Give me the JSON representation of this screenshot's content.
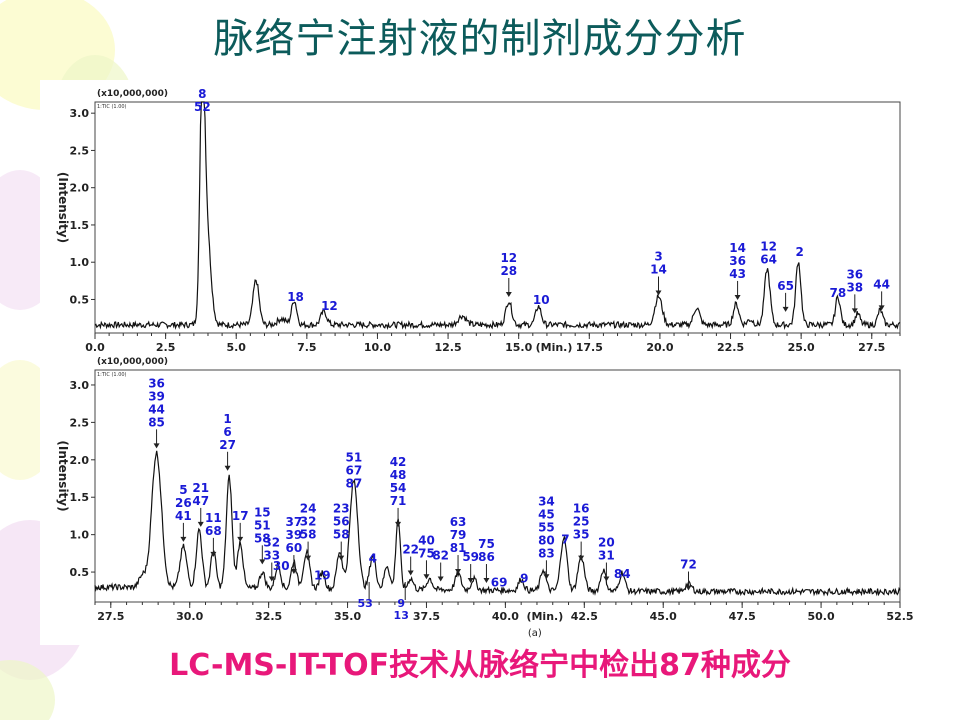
{
  "slide": {
    "title": "脉络宁注射液的制剂成分分析",
    "caption": "LC-MS-IT-TOF技术从脉络宁中检出87种成分",
    "colors": {
      "title": "#0c5b5b",
      "caption": "#e8187a",
      "trace": "#111111",
      "label": "#1a1ad6"
    }
  },
  "chart_data": [
    {
      "type": "line",
      "scale_label": "(x10,000,000)",
      "tic_label": "1:TIC (1.00)",
      "xlabel": "(Min.)",
      "ylabel": "(Intensity)",
      "xlim": [
        0,
        28.5
      ],
      "ylim": [
        0.05,
        3.15
      ],
      "x_ticks": [
        "0.0",
        "2.5",
        "5.0",
        "7.5",
        "10.0",
        "12.5",
        "15.0",
        "17.5",
        "20.0",
        "22.5",
        "25.0",
        "27.5"
      ],
      "y_ticks": [
        "0.5",
        "1.0",
        "1.5",
        "2.0",
        "2.5",
        "3.0"
      ],
      "peaks": [
        {
          "x": 3.8,
          "y": 2.95,
          "w": 0.12
        },
        {
          "x": 3.95,
          "y": 1.3,
          "w": 0.2
        },
        {
          "x": 5.7,
          "y": 0.6,
          "w": 0.15
        },
        {
          "x": 6.6,
          "y": 0.08,
          "w": 0.2
        },
        {
          "x": 7.05,
          "y": 0.33,
          "w": 0.13
        },
        {
          "x": 8.1,
          "y": 0.18,
          "w": 0.15
        },
        {
          "x": 13.0,
          "y": 0.12,
          "w": 0.2
        },
        {
          "x": 14.65,
          "y": 0.32,
          "w": 0.15
        },
        {
          "x": 15.7,
          "y": 0.25,
          "w": 0.14
        },
        {
          "x": 19.95,
          "y": 0.38,
          "w": 0.18
        },
        {
          "x": 21.3,
          "y": 0.23,
          "w": 0.15
        },
        {
          "x": 22.7,
          "y": 0.28,
          "w": 0.14
        },
        {
          "x": 23.2,
          "y": 0.07,
          "w": 0.15
        },
        {
          "x": 23.8,
          "y": 0.75,
          "w": 0.14
        },
        {
          "x": 24.9,
          "y": 0.85,
          "w": 0.13
        },
        {
          "x": 26.3,
          "y": 0.38,
          "w": 0.12
        },
        {
          "x": 27.0,
          "y": 0.15,
          "w": 0.12
        },
        {
          "x": 27.8,
          "y": 0.2,
          "w": 0.12
        }
      ],
      "annotations": [
        {
          "x": 3.8,
          "y": 2.95,
          "lines": [
            "8",
            "52"
          ]
        },
        {
          "x": 7.1,
          "y": 0.4,
          "lines": [
            "18"
          ]
        },
        {
          "x": 8.3,
          "y": 0.28,
          "lines": [
            "12"
          ]
        },
        {
          "x": 14.65,
          "y": 0.48,
          "lines": [
            "12",
            "28"
          ],
          "arrow": true
        },
        {
          "x": 15.8,
          "y": 0.36,
          "lines": [
            "10"
          ]
        },
        {
          "x": 19.95,
          "y": 0.5,
          "lines": [
            "3",
            "14"
          ],
          "arrow": true
        },
        {
          "x": 22.75,
          "y": 0.44,
          "lines": [
            "14",
            "36",
            "43"
          ],
          "arrow": true
        },
        {
          "x": 23.85,
          "y": 0.9,
          "lines": [
            "12",
            "64"
          ]
        },
        {
          "x": 24.45,
          "y": 0.28,
          "lines": [
            "65"
          ],
          "arrow": true
        },
        {
          "x": 24.95,
          "y": 1.0,
          "lines": [
            "2"
          ]
        },
        {
          "x": 26.3,
          "y": 0.45,
          "lines": [
            "78"
          ]
        },
        {
          "x": 26.9,
          "y": 0.26,
          "lines": [
            "36",
            "38"
          ],
          "arrow": true
        },
        {
          "x": 27.85,
          "y": 0.3,
          "lines": [
            "44"
          ],
          "arrow": true
        }
      ]
    },
    {
      "type": "line",
      "scale_label": "(x10,000,000)",
      "tic_label": "1:TIC (1.00)",
      "xlabel": "(Min.)",
      "ylabel": "(Intensity)",
      "sublabel": "(a)",
      "xlim": [
        27.0,
        52.5
      ],
      "ylim": [
        0.1,
        3.2
      ],
      "x_ticks": [
        "27.5",
        "30.0",
        "32.5",
        "35.0",
        "37.5",
        "40.0",
        "42.5",
        "45.0",
        "47.5",
        "50.0",
        "52.5"
      ],
      "y_ticks": [
        "0.5",
        "1.0",
        "1.5",
        "2.0",
        "2.5",
        "3.0"
      ],
      "peaks": [
        {
          "x": 28.5,
          "y": 0.15,
          "w": 0.15
        },
        {
          "x": 28.95,
          "y": 1.8,
          "w": 0.22
        },
        {
          "x": 29.8,
          "y": 0.55,
          "w": 0.15
        },
        {
          "x": 30.3,
          "y": 0.78,
          "w": 0.13
        },
        {
          "x": 30.75,
          "y": 0.5,
          "w": 0.12
        },
        {
          "x": 31.25,
          "y": 1.48,
          "w": 0.13
        },
        {
          "x": 31.6,
          "y": 0.62,
          "w": 0.12
        },
        {
          "x": 32.3,
          "y": 0.22,
          "w": 0.12
        },
        {
          "x": 32.8,
          "y": 0.32,
          "w": 0.12
        },
        {
          "x": 33.3,
          "y": 0.36,
          "w": 0.12
        },
        {
          "x": 33.7,
          "y": 0.48,
          "w": 0.14
        },
        {
          "x": 34.2,
          "y": 0.22,
          "w": 0.12
        },
        {
          "x": 34.75,
          "y": 0.5,
          "w": 0.13
        },
        {
          "x": 35.2,
          "y": 1.45,
          "w": 0.18
        },
        {
          "x": 35.8,
          "y": 0.45,
          "w": 0.14
        },
        {
          "x": 36.25,
          "y": 0.32,
          "w": 0.12
        },
        {
          "x": 36.6,
          "y": 0.95,
          "w": 0.1
        },
        {
          "x": 37.0,
          "y": 0.15,
          "w": 0.12
        },
        {
          "x": 37.6,
          "y": 0.15,
          "w": 0.12
        },
        {
          "x": 38.5,
          "y": 0.22,
          "w": 0.13
        },
        {
          "x": 39.0,
          "y": 0.15,
          "w": 0.12
        },
        {
          "x": 40.5,
          "y": 0.15,
          "w": 0.12
        },
        {
          "x": 41.2,
          "y": 0.28,
          "w": 0.12
        },
        {
          "x": 41.85,
          "y": 0.72,
          "w": 0.14
        },
        {
          "x": 42.4,
          "y": 0.46,
          "w": 0.14
        },
        {
          "x": 43.1,
          "y": 0.28,
          "w": 0.12
        },
        {
          "x": 43.7,
          "y": 0.25,
          "w": 0.12
        },
        {
          "x": 45.8,
          "y": 0.1,
          "w": 0.15
        }
      ],
      "annotations": [
        {
          "x": 28.95,
          "y": 2.1,
          "lines": [
            "36",
            "39",
            "44",
            "85"
          ],
          "arrow": true
        },
        {
          "x": 29.8,
          "y": 0.85,
          "lines": [
            "5",
            "26",
            "41"
          ],
          "arrow": true
        },
        {
          "x": 30.35,
          "y": 1.05,
          "lines": [
            "21",
            "47"
          ],
          "arrow": true
        },
        {
          "x": 30.75,
          "y": 0.65,
          "lines": [
            "11",
            "68"
          ],
          "arrow": true
        },
        {
          "x": 31.2,
          "y": 1.8,
          "lines": [
            "1",
            "6",
            "27"
          ],
          "arrow": true
        },
        {
          "x": 31.6,
          "y": 0.85,
          "lines": [
            "17"
          ],
          "arrow": true
        },
        {
          "x": 32.3,
          "y": 0.55,
          "lines": [
            "15",
            "51",
            "58"
          ],
          "arrow": true
        },
        {
          "x": 32.6,
          "y": 0.32,
          "lines": [
            "32",
            "33"
          ],
          "arrow": true
        },
        {
          "x": 32.9,
          "y": 0.45,
          "lines": [
            "30"
          ]
        },
        {
          "x": 33.3,
          "y": 0.42,
          "lines": [
            "37",
            "39",
            "60"
          ],
          "arrow": true
        },
        {
          "x": 33.75,
          "y": 0.6,
          "lines": [
            "24",
            "32",
            "58"
          ],
          "arrow": true
        },
        {
          "x": 34.2,
          "y": 0.32,
          "lines": [
            "19"
          ]
        },
        {
          "x": 34.8,
          "y": 0.6,
          "lines": [
            "23",
            "56",
            "58"
          ],
          "arrow": true
        },
        {
          "x": 35.2,
          "y": 1.55,
          "lines": [
            "51",
            "67",
            "87"
          ]
        },
        {
          "x": 35.8,
          "y": 0.55,
          "lines": [
            "4"
          ]
        },
        {
          "x": 36.6,
          "y": 1.05,
          "lines": [
            "42",
            "48",
            "54",
            "71"
          ],
          "arrow": true
        },
        {
          "x": 37.0,
          "y": 0.4,
          "lines": [
            "22"
          ],
          "arrow": true
        },
        {
          "x": 37.5,
          "y": 0.35,
          "lines": [
            "40",
            "75"
          ],
          "arrow": true
        },
        {
          "x": 37.95,
          "y": 0.32,
          "lines": [
            "82"
          ],
          "arrow": true
        },
        {
          "x": 38.5,
          "y": 0.42,
          "lines": [
            "63",
            "79",
            "81"
          ],
          "arrow": true
        },
        {
          "x": 38.9,
          "y": 0.3,
          "lines": [
            "59"
          ],
          "arrow": true
        },
        {
          "x": 39.4,
          "y": 0.3,
          "lines": [
            "75",
            "86"
          ],
          "arrow": true
        },
        {
          "x": 39.8,
          "y": 0.23,
          "lines": [
            "69"
          ]
        },
        {
          "x": 40.6,
          "y": 0.28,
          "lines": [
            "9"
          ]
        },
        {
          "x": 41.3,
          "y": 0.35,
          "lines": [
            "34",
            "45",
            "55",
            "80",
            "83"
          ],
          "arrow": true
        },
        {
          "x": 41.9,
          "y": 0.8,
          "lines": [
            "7"
          ]
        },
        {
          "x": 42.4,
          "y": 0.6,
          "lines": [
            "16",
            "25",
            "35"
          ],
          "arrow": true
        },
        {
          "x": 43.2,
          "y": 0.32,
          "lines": [
            "20",
            "31"
          ],
          "arrow": true
        },
        {
          "x": 43.7,
          "y": 0.34,
          "lines": [
            "84"
          ]
        },
        {
          "x": 45.8,
          "y": 0.2,
          "lines": [
            "72"
          ],
          "arrow": true
        }
      ],
      "below_annotations": [
        {
          "x": 36.0,
          "lines": [
            "53"
          ],
          "dx": -14
        },
        {
          "x": 36.7,
          "lines": [
            "9",
            "13"
          ],
          "dx": 0
        }
      ]
    }
  ]
}
